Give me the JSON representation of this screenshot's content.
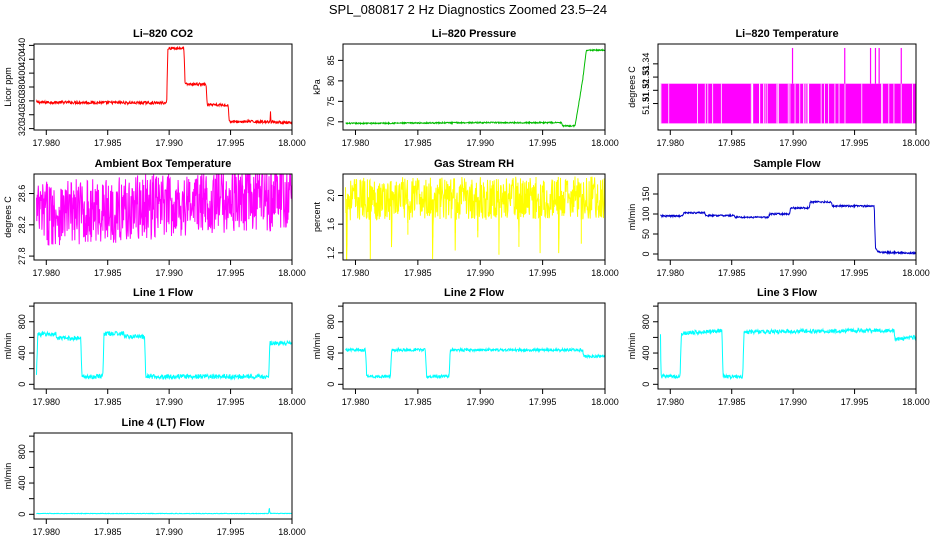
{
  "title": "SPL_080817  2 Hz Diagnostics Zoomed 23.5–24",
  "chart_data": [
    {
      "type": "line",
      "title": "Li–820 CO2",
      "ylabel": "Licor ppm",
      "color": "#ff0000",
      "xlim": [
        17.979,
        18.0
      ],
      "ylim": [
        318,
        442
      ],
      "xticks": [
        17.98,
        17.985,
        17.99,
        17.995,
        18.0
      ],
      "xtick_labels": [
        "17.980",
        "17.985",
        "17.990",
        "17.995",
        "18.000"
      ],
      "yticks": [
        320,
        340,
        360,
        380,
        400,
        420,
        440
      ],
      "ytick_labels": [
        "320",
        "340",
        "360",
        "380",
        "400",
        "420",
        "440"
      ],
      "noise": 2,
      "x": [
        17.9792,
        17.9898,
        17.9899,
        17.9912,
        17.9913,
        17.993,
        17.9931,
        17.9948,
        17.9949,
        17.9982,
        17.99825,
        17.9983,
        18.0
      ],
      "y": [
        358,
        357,
        436,
        436,
        384,
        384,
        354,
        354,
        330,
        330,
        344,
        330,
        328
      ]
    },
    {
      "type": "line",
      "title": "Li–820 Pressure",
      "ylabel": "kPa",
      "color": "#00bb00",
      "xlim": [
        17.979,
        18.0
      ],
      "ylim": [
        68,
        89
      ],
      "xticks": [
        17.98,
        17.985,
        17.99,
        17.995,
        18.0
      ],
      "xtick_labels": [
        "17.980",
        "17.985",
        "17.990",
        "17.995",
        "18.000"
      ],
      "yticks": [
        70,
        75,
        80,
        85
      ],
      "ytick_labels": [
        "70",
        "75",
        "80",
        "85"
      ],
      "noise": 0.15,
      "x": [
        17.9792,
        17.9895,
        17.9965,
        17.9966,
        17.9976,
        17.9982,
        17.9985,
        17.9986,
        18.0
      ],
      "y": [
        69.6,
        69.8,
        69.8,
        69.0,
        69.0,
        80.0,
        87.3,
        87.5,
        87.5
      ]
    },
    {
      "type": "line",
      "title": "Li–820 Temperature",
      "ylabel": "degrees C",
      "color": "#ff00ff",
      "xlim": [
        17.979,
        18.0
      ],
      "ylim": [
        51.29,
        51.355
      ],
      "xticks": [
        17.98,
        17.985,
        17.99,
        17.995,
        18.0
      ],
      "xtick_labels": [
        "17.980",
        "17.985",
        "17.990",
        "17.995",
        "18.000"
      ],
      "yticks": [
        51.31,
        51.32,
        51.33,
        51.34
      ],
      "ytick_labels": [
        "51.31",
        "51.32",
        "51.33",
        "51.34"
      ],
      "style": "band",
      "band": [
        51.295,
        51.325
      ],
      "spikes": [
        17.98995,
        17.9942,
        17.9963,
        17.9967,
        17.997,
        17.9988
      ],
      "spike_top": 51.352
    },
    {
      "type": "line",
      "title": "Ambient Box Temperature",
      "ylabel": "degrees C",
      "color": "#ff00ff",
      "xlim": [
        17.979,
        18.0
      ],
      "ylim": [
        27.75,
        28.85
      ],
      "xticks": [
        17.98,
        17.985,
        17.99,
        17.995,
        18.0
      ],
      "xtick_labels": [
        "17.980",
        "17.985",
        "17.990",
        "17.995",
        "18.000"
      ],
      "yticks": [
        27.8,
        28.2,
        28.6
      ],
      "ytick_labels": [
        "27.8",
        "28.2",
        "28.6"
      ],
      "style": "noisy",
      "x": [
        17.9792,
        17.985,
        17.99,
        17.995,
        18.0
      ],
      "y": [
        28.35,
        28.38,
        28.45,
        28.52,
        28.55
      ],
      "noise": 0.42
    },
    {
      "type": "line",
      "title": "Gas Stream RH",
      "ylabel": "percent",
      "color": "#ffff00",
      "xlim": [
        17.979,
        18.0
      ],
      "ylim": [
        1.1,
        2.3
      ],
      "xticks": [
        17.98,
        17.985,
        17.99,
        17.995,
        18.0
      ],
      "xtick_labels": [
        "17.980",
        "17.985",
        "17.990",
        "17.995",
        "18.000"
      ],
      "yticks": [
        1.2,
        1.6,
        2.0
      ],
      "ytick_labels": [
        "1.2",
        "1.6",
        "2.0"
      ],
      "style": "noisy",
      "x": [
        17.9792,
        18.0
      ],
      "y": [
        1.95,
        1.97
      ],
      "noise": 0.3,
      "dips": [
        17.9793,
        17.9812,
        17.9829,
        17.9842,
        17.9862,
        17.988,
        17.9898,
        17.9915,
        17.9931,
        17.9948,
        17.9963,
        17.9981
      ]
    },
    {
      "type": "line",
      "title": "Sample Flow",
      "ylabel": "ml/min",
      "color": "#0000cc",
      "xlim": [
        17.979,
        18.0
      ],
      "ylim": [
        -15,
        200
      ],
      "xticks": [
        17.98,
        17.985,
        17.99,
        17.995,
        18.0
      ],
      "xtick_labels": [
        "17.980",
        "17.985",
        "17.990",
        "17.995",
        "18.000"
      ],
      "yticks": [
        0,
        50,
        100,
        150
      ],
      "ytick_labels": [
        "0",
        "50",
        "100",
        "150"
      ],
      "noise": 2,
      "x": [
        17.9792,
        17.981,
        17.9811,
        17.9828,
        17.9829,
        17.9852,
        17.9853,
        17.988,
        17.9881,
        17.9897,
        17.9898,
        17.9913,
        17.9914,
        17.9931,
        17.9932,
        17.9966,
        17.9967,
        17.9969,
        18.0
      ],
      "y": [
        95,
        95,
        103,
        103,
        96,
        96,
        92,
        92,
        100,
        100,
        115,
        115,
        130,
        130,
        120,
        120,
        15,
        5,
        2
      ]
    },
    {
      "type": "line",
      "title": "Line 1 Flow",
      "ylabel": "ml/min",
      "color": "#00ffff",
      "xlim": [
        17.979,
        18.0
      ],
      "ylim": [
        -60,
        1040
      ],
      "xticks": [
        17.98,
        17.985,
        17.99,
        17.995,
        18.0
      ],
      "xtick_labels": [
        "17.980",
        "17.985",
        "17.990",
        "17.995",
        "18.000"
      ],
      "yticks": [
        0,
        400,
        800
      ],
      "ytick_labels": [
        "0",
        "400",
        "800"
      ],
      "yticks_minor": [
        200,
        600,
        1000
      ],
      "noise": 30,
      "x": [
        17.9792,
        17.9793,
        17.9808,
        17.9809,
        17.9828,
        17.9829,
        17.9846,
        17.9847,
        17.9863,
        17.9864,
        17.988,
        17.9881,
        17.9981,
        17.9982,
        17.9983,
        18.0
      ],
      "y": [
        100,
        640,
        640,
        590,
        590,
        100,
        100,
        650,
        650,
        610,
        610,
        100,
        100,
        520,
        530,
        520
      ]
    },
    {
      "type": "line",
      "title": "Line 2 Flow",
      "ylabel": "ml/min",
      "color": "#00ffff",
      "xlim": [
        17.979,
        18.0
      ],
      "ylim": [
        -60,
        1040
      ],
      "xticks": [
        17.98,
        17.985,
        17.99,
        17.995,
        18.0
      ],
      "xtick_labels": [
        "17.980",
        "17.985",
        "17.990",
        "17.995",
        "18.000"
      ],
      "yticks": [
        0,
        400,
        800
      ],
      "ytick_labels": [
        "0",
        "400",
        "800"
      ],
      "yticks_minor": [
        200,
        600,
        1000
      ],
      "noise": 18,
      "x": [
        17.9792,
        17.9808,
        17.9809,
        17.9828,
        17.9829,
        17.9856,
        17.9857,
        17.9875,
        17.9876,
        17.9982,
        17.9983,
        18.0
      ],
      "y": [
        440,
        440,
        100,
        100,
        440,
        440,
        100,
        100,
        440,
        440,
        360,
        360
      ]
    },
    {
      "type": "line",
      "title": "Line 3 Flow",
      "ylabel": "ml/min",
      "color": "#00ffff",
      "xlim": [
        17.979,
        18.0
      ],
      "ylim": [
        -60,
        1040
      ],
      "xticks": [
        17.98,
        17.985,
        17.99,
        17.995,
        18.0
      ],
      "xtick_labels": [
        "17.980",
        "17.985",
        "17.990",
        "17.995",
        "18.000"
      ],
      "yticks": [
        0,
        400,
        800
      ],
      "ytick_labels": [
        "0",
        "400",
        "800"
      ],
      "yticks_minor": [
        200,
        600,
        1000
      ],
      "noise": 25,
      "x": [
        17.9792,
        17.97925,
        17.9793,
        17.9808,
        17.9809,
        17.9842,
        17.9843,
        17.9859,
        17.986,
        17.9982,
        17.9983,
        18.0
      ],
      "y": [
        620,
        100,
        100,
        100,
        650,
        690,
        100,
        100,
        670,
        690,
        580,
        600
      ]
    },
    {
      "type": "line",
      "title": "Line 4 (LT) Flow",
      "ylabel": "ml/min",
      "color": "#00ffff",
      "xlim": [
        17.979,
        18.0
      ],
      "ylim": [
        -60,
        1040
      ],
      "xticks": [
        17.98,
        17.985,
        17.99,
        17.995,
        18.0
      ],
      "xtick_labels": [
        "17.980",
        "17.985",
        "17.990",
        "17.995",
        "18.000"
      ],
      "yticks": [
        0,
        400,
        800
      ],
      "ytick_labels": [
        "0",
        "400",
        "800"
      ],
      "yticks_minor": [
        200,
        600,
        1000
      ],
      "noise": 3,
      "x": [
        17.9792,
        17.9981,
        17.99815,
        17.9982,
        17.99825,
        18.0
      ],
      "y": [
        10,
        10,
        90,
        20,
        12,
        10
      ]
    }
  ]
}
